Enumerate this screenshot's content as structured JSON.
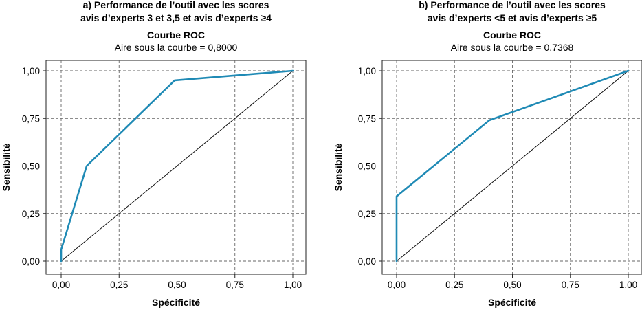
{
  "chart_data": [
    {
      "type": "line",
      "title": "a) Performance de l’outil avec les scores",
      "title_line2": "avis d’experts 3 et 3,5 et avis d’experts ≥4",
      "subtitle": "Courbe ROC",
      "subtitle2": "Aire sous la courbe = 0,8000",
      "xlabel": "Spécificité",
      "ylabel": "Sensibilité",
      "xlim": [
        0,
        1
      ],
      "ylim": [
        0,
        1
      ],
      "xticks": [
        "0,00",
        "0,25",
        "0,50",
        "0,75",
        "1,00"
      ],
      "yticks": [
        "0,00",
        "0,25",
        "0,50",
        "0,75",
        "1,00"
      ],
      "grid": "dashed",
      "series": [
        {
          "x": [
            0,
            0,
            0.11,
            0.49,
            1.0
          ],
          "y": [
            0,
            0.06,
            0.5,
            0.95,
            1.0
          ],
          "color": "#1f8ab5"
        }
      ],
      "diagonal": true
    },
    {
      "type": "line",
      "title": "b) Performance de l’outil avec les scores",
      "title_line2": "avis d’experts <5 et avis d’experts ≥5",
      "subtitle": "Courbe ROC",
      "subtitle2": "Aire sous la courbe = 0,7368",
      "xlabel": "Spécificité",
      "ylabel": "Sensibilité",
      "xlim": [
        0,
        1
      ],
      "ylim": [
        0,
        1
      ],
      "xticks": [
        "0,00",
        "0,25",
        "0,50",
        "0,75",
        "1,00"
      ],
      "yticks": [
        "0,00",
        "0,25",
        "0,50",
        "0,75",
        "1,00"
      ],
      "grid": "dashed",
      "series": [
        {
          "x": [
            0,
            0,
            0.4,
            1.0
          ],
          "y": [
            0,
            0.34,
            0.74,
            1.0
          ],
          "color": "#1f8ab5"
        }
      ],
      "diagonal": true
    }
  ]
}
